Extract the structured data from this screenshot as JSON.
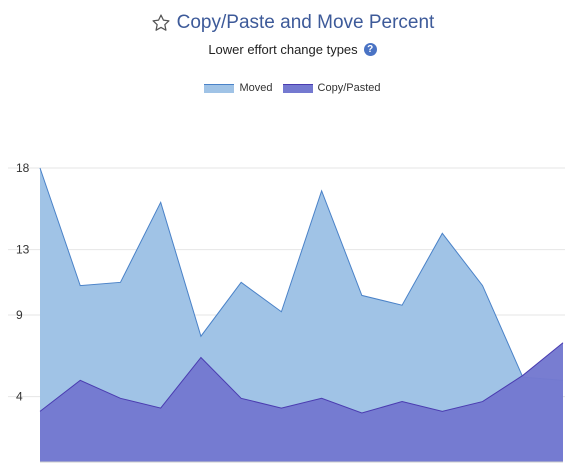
{
  "header": {
    "title": "Copy/Paste and Move Percent",
    "subtitle": "Lower effort change types",
    "star_icon": "star-outline-icon",
    "help_icon": "question-circle-icon"
  },
  "colors": {
    "title": "#3d5a99",
    "moved_fill": "#a0c3e6",
    "moved_stroke": "#4a82c8",
    "copy_fill": "#7479d0",
    "copy_stroke": "#4a3cb0",
    "grid": "#e6e6e6"
  },
  "chart_data": {
    "type": "area",
    "title": "Copy/Paste and Move Percent",
    "subtitle": "Lower effort change types",
    "xlabel": "",
    "ylabel": "",
    "yticks": [
      4,
      9,
      13,
      18
    ],
    "ylim": [
      0,
      18
    ],
    "grid": true,
    "legend_position": "top",
    "x": [
      1,
      2,
      3,
      4,
      5,
      6,
      7,
      8,
      9,
      10,
      11,
      12,
      13,
      14
    ],
    "series": [
      {
        "name": "Moved",
        "values": [
          18.0,
          10.8,
          11.0,
          15.9,
          7.7,
          11.0,
          9.2,
          16.6,
          10.2,
          9.6,
          14.0,
          10.8,
          5.2,
          5.0
        ]
      },
      {
        "name": "Copy/Pasted",
        "values": [
          3.1,
          5.0,
          3.9,
          3.3,
          6.4,
          3.9,
          3.3,
          3.9,
          3.0,
          3.7,
          3.1,
          3.7,
          5.3,
          7.3
        ]
      }
    ]
  }
}
